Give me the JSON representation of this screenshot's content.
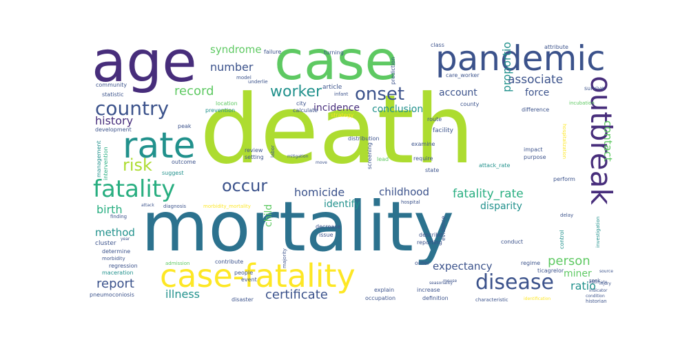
{
  "palette": {
    "deep_purple": "#440154",
    "purple": "#472d7b",
    "indigo": "#3b528b",
    "blue": "#2c728e",
    "teal": "#21918c",
    "green_teal": "#28ae80",
    "green": "#5ec962",
    "lime": "#addc30",
    "yellow": "#fde725"
  },
  "words": {
    "death": "death",
    "mortality": "mortality",
    "case": "case",
    "age": "age",
    "pandemic": "pandemic",
    "case_fatality": "case-fatality",
    "outbreak": "outbreak",
    "rate": "rate",
    "fatality": "fatality",
    "country": "country",
    "onset": "onset",
    "risk": "risk",
    "disease": "disease",
    "occur": "occur",
    "worker": "worker",
    "record": "record",
    "number": "number",
    "syndrome": "syndrome",
    "history": "history",
    "associate": "associate",
    "incidence": "incidence",
    "conclusion": "conclusion",
    "account": "account",
    "force": "force",
    "proportion": "proportion",
    "contact": "contact",
    "homicide": "homicide",
    "childhood": "childhood",
    "fatality_rate": "fatality_rate",
    "birth": "birth",
    "identify": "identify",
    "disparity": "disparity",
    "method": "method",
    "report": "report",
    "person": "person",
    "expectancy": "expectancy",
    "miner": "miner",
    "illness": "illness",
    "certificate": "certificate",
    "ratio": "ratio",
    "child": "child",
    "failure": "failure",
    "turning": "turning",
    "class": "class",
    "attribute": "attribute",
    "article": "article",
    "prediction": "prediction",
    "care_worker": "care_worker",
    "community": "community",
    "statistic": "statistic",
    "model": "model",
    "underlie": "underlie",
    "infant": "infant",
    "city": "city",
    "calculate": "calculate",
    "location": "location",
    "prevention": "prevention",
    "strategy": "strategy",
    "county": "county",
    "survive": "survive",
    "difference": "difference",
    "development": "development",
    "peak": "peak",
    "facility": "facility",
    "route": "route",
    "management": "management",
    "review": "review",
    "setting": "setting",
    "labor": "labor",
    "distribution": "distribution",
    "examine": "examine",
    "impact": "impact",
    "purpose": "purpose",
    "intervention": "intervention",
    "outcome": "outcome",
    "suggest": "suggest",
    "require": "require",
    "state": "state",
    "attack_rate": "attack_rate",
    "perform": "perform",
    "hospitalization": "hospitalization",
    "lead": "lead",
    "mitigation": "mitigation",
    "move": "move",
    "screening": "screening",
    "diagnosis": "diagnosis",
    "attack": "attack",
    "morbidity_mortality": "morbidity_mortality",
    "hospital": "hospital",
    "finding": "finding",
    "delay": "delay",
    "cluster": "cluster",
    "determine": "determine",
    "morbidity": "morbidity",
    "regression": "regression",
    "maceration": "maceration",
    "pneumoconiosis": "pneumoconiosis",
    "issue": "issue",
    "decrease": "decrease",
    "evidence": "evidence",
    "describe": "describe",
    "reporting": "reporting",
    "conduct": "conduct",
    "control": "control",
    "investigation": "investigation",
    "admission": "admission",
    "contribute": "contribute",
    "people": "people",
    "event": "event",
    "majority": "majority",
    "order": "order",
    "regime": "regime",
    "ticagrelor": "ticagrelor",
    "explain": "explain",
    "increase": "increase",
    "seek": "seek",
    "disaster": "disaster",
    "occupation": "occupation",
    "definition": "definition",
    "characteristic": "characteristic",
    "year": "year",
    "incubation": "incubation",
    "estimate": "estimate",
    "source": "source",
    "historian": "historian",
    "indicator": "indicator",
    "injury": "injury",
    "condition": "condition",
    "identification": "identification",
    "seasonality": "seasonality",
    "mouse": "mouse"
  }
}
